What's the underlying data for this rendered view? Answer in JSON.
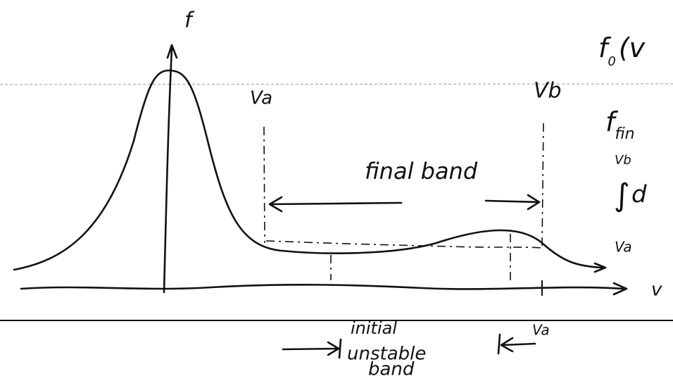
{
  "axes": {
    "y_label": "f",
    "x_label": "v"
  },
  "markers": {
    "va_top": "Va",
    "vb_top": "Vb",
    "va_bottom": "Va"
  },
  "final_band": "final band",
  "initial_band": {
    "line1": "initial",
    "line2": "unstable",
    "line3": "band"
  },
  "right_notes": {
    "f0": {
      "base": "f",
      "sub": "0",
      "rest": "(v"
    },
    "ffinal": {
      "base": "f",
      "sub": "fin"
    },
    "integral": {
      "upper": "Vb",
      "sign": "∫",
      "rest": "d",
      "lower": "Va"
    }
  }
}
